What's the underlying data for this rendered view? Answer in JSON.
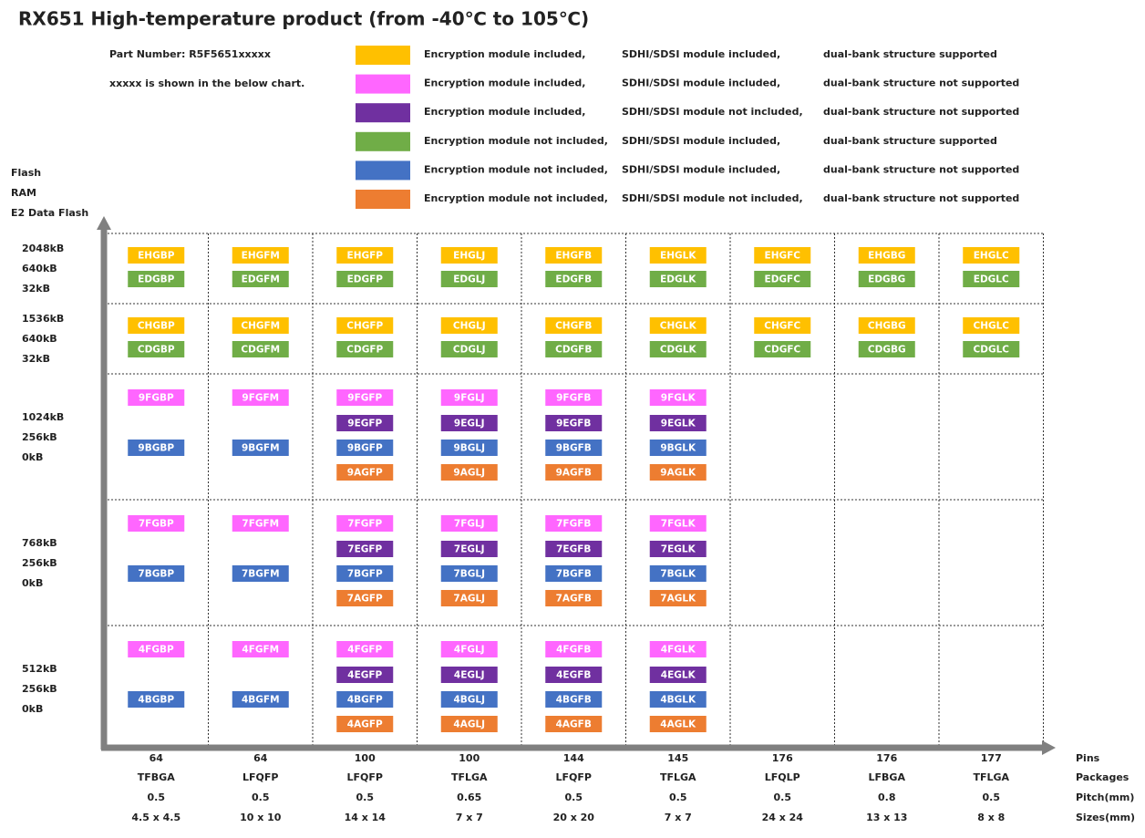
{
  "title": "RX651  High-temperature product (from -40℃ to 105℃)",
  "notes": [
    "Part Number: R5F5651xxxxx",
    "xxxxx is shown in the below chart."
  ],
  "legend": [
    {
      "color": "#FFC000",
      "texts": [
        "Encryption module included,",
        "SDHI/SDSI module included,",
        "dual-bank structure supported"
      ]
    },
    {
      "color": "#FF66FF",
      "texts": [
        "Encryption module included,",
        "SDHI/SDSI module included,",
        "dual-bank structure not supported"
      ]
    },
    {
      "color": "#7030A0",
      "texts": [
        "Encryption module included,",
        "SDHI/SDSI module not included,",
        "dual-bank structure not supported"
      ]
    },
    {
      "color": "#70AD47",
      "texts": [
        "Encryption module not included,",
        "SDHI/SDSI module included,",
        "dual-bank structure supported"
      ]
    },
    {
      "color": "#4472C4",
      "texts": [
        "Encryption module not included,",
        "SDHI/SDSI module included,",
        "dual-bank structure not supported"
      ]
    },
    {
      "color": "#ED7D31",
      "texts": [
        "Encryption module not included,",
        "SDHI/SDSI module not included,",
        "dual-bank structure not supported"
      ]
    }
  ],
  "y_axis_labels": [
    "Flash",
    "RAM",
    "E2 Data Flash"
  ],
  "x_axis_labels": [
    "Pins",
    "Packages",
    "Pitch(mm)",
    "Sizes(mm)"
  ],
  "columns": [
    {
      "pins": "64",
      "package": "TFBGA",
      "pitch": "0.5",
      "size": "4.5 x 4.5"
    },
    {
      "pins": "64",
      "package": "LFQFP",
      "pitch": "0.5",
      "size": "10 x 10"
    },
    {
      "pins": "100",
      "package": "LFQFP",
      "pitch": "0.5",
      "size": "14 x 14"
    },
    {
      "pins": "100",
      "package": "TFLGA",
      "pitch": "0.65",
      "size": "7 x 7"
    },
    {
      "pins": "144",
      "package": "LFQFP",
      "pitch": "0.5",
      "size": "20 x 20"
    },
    {
      "pins": "145",
      "package": "TFLGA",
      "pitch": "0.5",
      "size": "7 x 7"
    },
    {
      "pins": "176",
      "package": "LFQLP",
      "pitch": "0.5",
      "size": "24 x 24"
    },
    {
      "pins": "176",
      "package": "LFBGA",
      "pitch": "0.8",
      "size": "13 x 13"
    },
    {
      "pins": "177",
      "package": "TFLGA",
      "pitch": "0.5",
      "size": "8 x 8"
    }
  ],
  "rows": [
    {
      "labels": [
        "2048kB",
        "640kB",
        "32kB"
      ],
      "colors": [
        "#FFC000",
        "#70AD47"
      ],
      "cells": [
        [
          "EHGBP",
          "EDGBP"
        ],
        [
          "EHGFM",
          "EDGFM"
        ],
        [
          "EHGFP",
          "EDGFP"
        ],
        [
          "EHGLJ",
          "EDGLJ"
        ],
        [
          "EHGFB",
          "EDGFB"
        ],
        [
          "EHGLK",
          "EDGLK"
        ],
        [
          "EHGFC",
          "EDGFC"
        ],
        [
          "EHGBG",
          "EDGBG"
        ],
        [
          "EHGLC",
          "EDGLC"
        ]
      ]
    },
    {
      "labels": [
        "1536kB",
        "640kB",
        "32kB"
      ],
      "colors": [
        "#FFC000",
        "#70AD47"
      ],
      "cells": [
        [
          "CHGBP",
          "CDGBP"
        ],
        [
          "CHGFM",
          "CDGFM"
        ],
        [
          "CHGFP",
          "CDGFP"
        ],
        [
          "CHGLJ",
          "CDGLJ"
        ],
        [
          "CHGFB",
          "CDGFB"
        ],
        [
          "CHGLK",
          "CDGLK"
        ],
        [
          "CHGFC",
          "CDGFC"
        ],
        [
          "CHGBG",
          "CDGBG"
        ],
        [
          "CHGLC",
          "CDGLC"
        ]
      ]
    },
    {
      "labels": [
        "1024kB",
        "256kB",
        "0kB"
      ],
      "colors": [
        "#FF66FF",
        "#7030A0",
        "#4472C4",
        "#ED7D31"
      ],
      "cells": [
        [
          "9FGBP",
          null,
          "9BGBP",
          null
        ],
        [
          "9FGFM",
          null,
          "9BGFM",
          null
        ],
        [
          "9FGFP",
          "9EGFP",
          "9BGFP",
          "9AGFP"
        ],
        [
          "9FGLJ",
          "9EGLJ",
          "9BGLJ",
          "9AGLJ"
        ],
        [
          "9FGFB",
          "9EGFB",
          "9BGFB",
          "9AGFB"
        ],
        [
          "9FGLK",
          "9EGLK",
          "9BGLK",
          "9AGLK"
        ],
        [],
        [],
        []
      ]
    },
    {
      "labels": [
        "768kB",
        "256kB",
        "0kB"
      ],
      "colors": [
        "#FF66FF",
        "#7030A0",
        "#4472C4",
        "#ED7D31"
      ],
      "cells": [
        [
          "7FGBP",
          null,
          "7BGBP",
          null
        ],
        [
          "7FGFM",
          null,
          "7BGFM",
          null
        ],
        [
          "7FGFP",
          "7EGFP",
          "7BGFP",
          "7AGFP"
        ],
        [
          "7FGLJ",
          "7EGLJ",
          "7BGLJ",
          "7AGLJ"
        ],
        [
          "7FGFB",
          "7EGFB",
          "7BGFB",
          "7AGFB"
        ],
        [
          "7FGLK",
          "7EGLK",
          "7BGLK",
          "7AGLK"
        ],
        [],
        [],
        []
      ]
    },
    {
      "labels": [
        "512kB",
        "256kB",
        "0kB"
      ],
      "colors": [
        "#FF66FF",
        "#7030A0",
        "#4472C4",
        "#ED7D31"
      ],
      "cells": [
        [
          "4FGBP",
          null,
          "4BGBP",
          null
        ],
        [
          "4FGFM",
          null,
          "4BGFM",
          null
        ],
        [
          "4FGFP",
          "4EGFP",
          "4BGFP",
          "4AGFP"
        ],
        [
          "4FGLJ",
          "4EGLJ",
          "4BGLJ",
          "4AGLJ"
        ],
        [
          "4FGFB",
          "4EGFB",
          "4BGFB",
          "4AGFB"
        ],
        [
          "4FGLK",
          "4EGLK",
          "4BGLK",
          "4AGLK"
        ],
        [],
        [],
        []
      ]
    }
  ]
}
